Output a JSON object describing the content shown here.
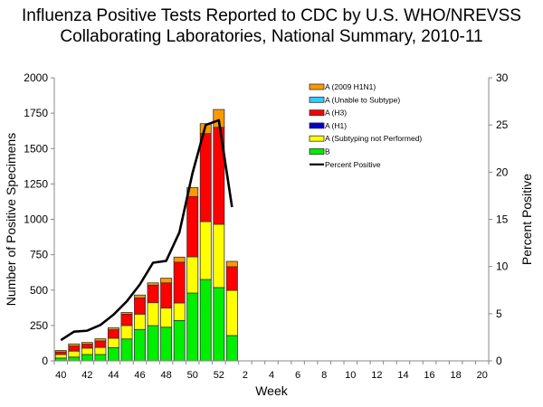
{
  "chart_data": {
    "type": "bar",
    "subtype": "stacked-bar-with-line",
    "title_lines": [
      "Influenza Positive Tests Reported to CDC by U.S. WHO/NREVSS",
      "Collaborating Laboratories, National Summary, 2010-11"
    ],
    "xlabel": "Week",
    "ylabel": "Number of Positive Specimens",
    "y2label": "Percent Positive",
    "ylim": [
      0,
      2000
    ],
    "yticks": [
      0,
      250,
      500,
      750,
      1000,
      1250,
      1500,
      1750,
      2000
    ],
    "y2lim": [
      0,
      30
    ],
    "y2ticks": [
      0,
      5,
      10,
      15,
      20,
      25,
      30
    ],
    "x_ticks_all": [
      40,
      41,
      42,
      43,
      44,
      45,
      46,
      47,
      48,
      49,
      50,
      51,
      52,
      1,
      2,
      3,
      4,
      5,
      6,
      7,
      8,
      9,
      10,
      11,
      12,
      13,
      14,
      15,
      16,
      17,
      18,
      19,
      20
    ],
    "x_tick_labels": [
      "40",
      "",
      "42",
      "",
      "44",
      "",
      "46",
      "",
      "48",
      "",
      "50",
      "",
      "52",
      "",
      "2",
      "",
      "4",
      "",
      "6",
      "",
      "8",
      "",
      "10",
      "",
      "12",
      "",
      "14",
      "",
      "16",
      "",
      "18",
      "",
      "20"
    ],
    "categories": [
      "40",
      "41",
      "42",
      "43",
      "44",
      "45",
      "46",
      "47",
      "48",
      "49",
      "50",
      "51",
      "52",
      "1"
    ],
    "legend_position": "top-right",
    "grid": false,
    "series": [
      {
        "name": "B",
        "color": "#00ee00",
        "values": [
          20,
          27,
          45,
          45,
          94,
          155,
          222,
          249,
          238,
          285,
          479,
          575,
          518,
          179
        ]
      },
      {
        "name": "A (Subtyping not Performed)",
        "color": "#ffff00",
        "values": [
          25,
          42,
          45,
          50,
          66,
          95,
          108,
          162,
          135,
          124,
          256,
          409,
          447,
          319
        ]
      },
      {
        "name": "A (H1)",
        "color": "#0000cc",
        "values": [
          0,
          0,
          0,
          0,
          0,
          0,
          0,
          0,
          0,
          0,
          0,
          0,
          0,
          0
        ]
      },
      {
        "name": "A (H3)",
        "color": "#ff0000",
        "values": [
          18,
          36,
          28,
          46,
          60,
          80,
          115,
          124,
          178,
          288,
          426,
          622,
          685,
          167
        ]
      },
      {
        "name": "A (Unable to Subtype)",
        "color": "#33ccff",
        "values": [
          0,
          0,
          0,
          0,
          0,
          0,
          0,
          0,
          0,
          0,
          0,
          0,
          0,
          0
        ]
      },
      {
        "name": "A (2009 H1N1)",
        "color": "#ff9900",
        "values": [
          10,
          15,
          12,
          15,
          14,
          12,
          20,
          16,
          33,
          36,
          64,
          70,
          126,
          38
        ]
      }
    ],
    "line_series": {
      "name": "Percent Positive",
      "color": "#000000",
      "axis": "right",
      "values": [
        2.2,
        3.1,
        3.2,
        3.8,
        4.9,
        6.3,
        8.1,
        10.4,
        10.6,
        13.6,
        19.9,
        25.0,
        25.5,
        16.3
      ]
    },
    "legend_order": [
      "A (2009 H1N1)",
      "A (Unable to Subtype)",
      "A (H3)",
      "A (H1)",
      "A (Subtyping not Performed)",
      "B",
      "Percent Positive"
    ]
  }
}
